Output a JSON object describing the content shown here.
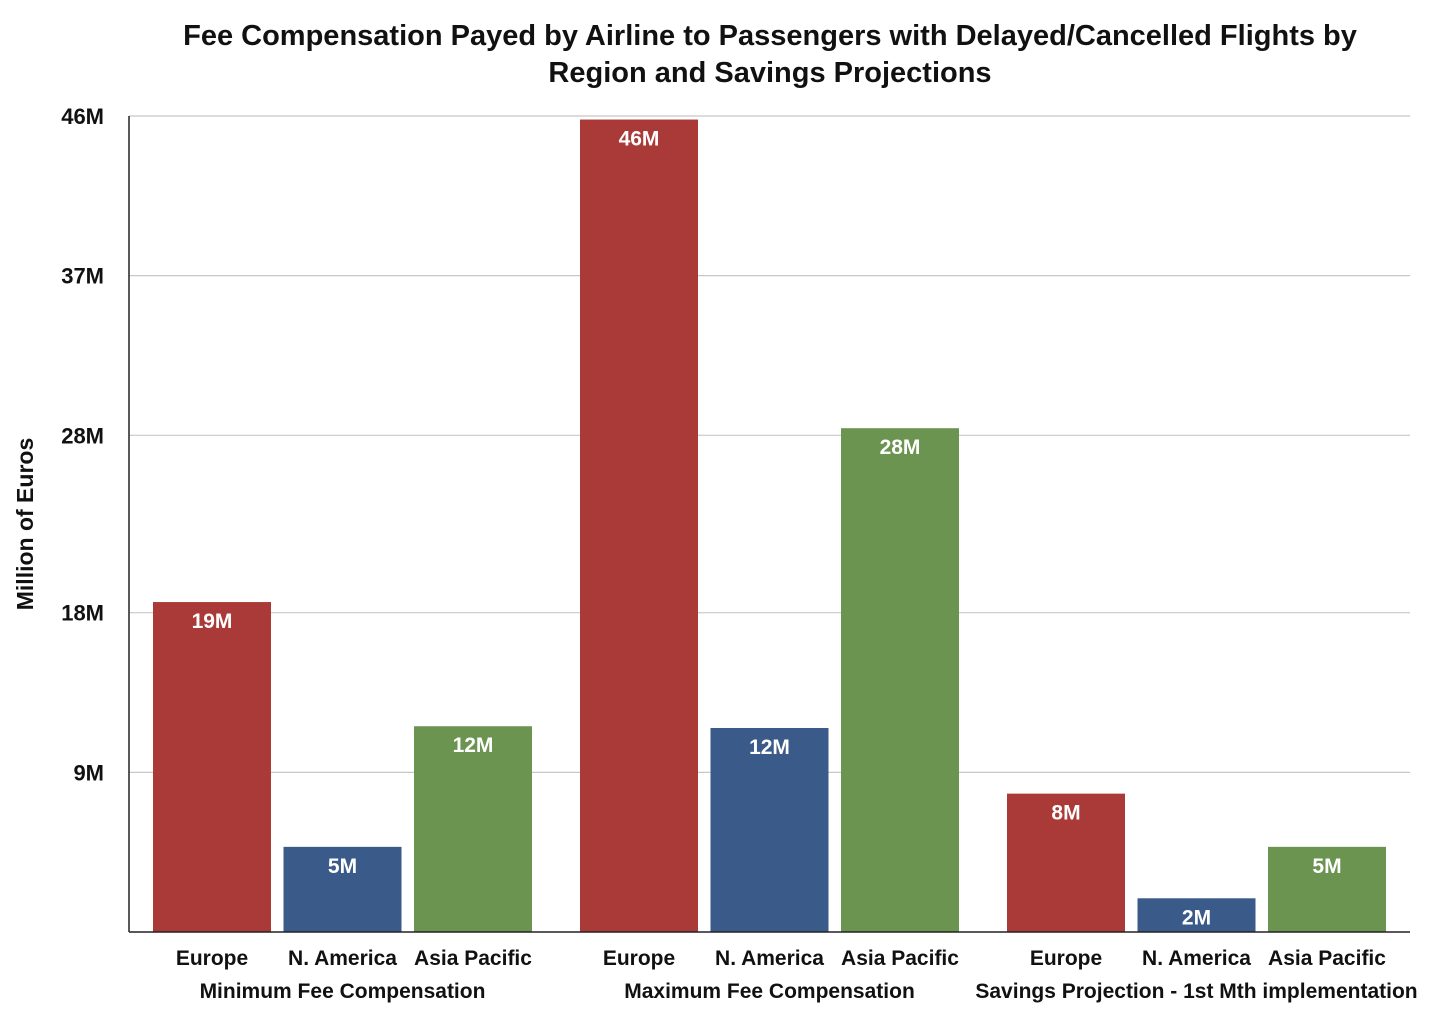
{
  "chart_data": {
    "type": "bar",
    "title_lines": [
      "Fee Compensation Payed by Airline to Passengers with Delayed/Cancelled Flights by",
      "Region and Savings Projections"
    ],
    "ylabel": "Million of Euros",
    "xlabel": "",
    "ylim": [
      0,
      46
    ],
    "y_ticks": [
      {
        "value": 9,
        "label": "9M"
      },
      {
        "value": 18,
        "label": "18M"
      },
      {
        "value": 28,
        "label": "28M"
      },
      {
        "value": 37,
        "label": "37M"
      },
      {
        "value": 46,
        "label": "46M"
      }
    ],
    "grid": true,
    "legend": "none",
    "colors": {
      "Europe": "#a93a38",
      "N. America": "#3a5a8a",
      "Asia Pacific": "#6a9450",
      "gridline": "#c8c8c8",
      "axis": "#222222"
    },
    "groups": [
      {
        "label": "Minimum Fee Compensation",
        "bars": [
          {
            "category": "Europe",
            "value": 18.6,
            "label": "19M"
          },
          {
            "category": "N. America",
            "value": 4.8,
            "label": "5M"
          },
          {
            "category": "Asia Pacific",
            "value": 11.6,
            "label": "12M"
          }
        ]
      },
      {
        "label": "Maximum Fee Compensation",
        "bars": [
          {
            "category": "Europe",
            "value": 45.8,
            "label": "46M"
          },
          {
            "category": "N. America",
            "value": 11.5,
            "label": "12M"
          },
          {
            "category": "Asia Pacific",
            "value": 28.4,
            "label": "28M"
          }
        ]
      },
      {
        "label": "Savings Projection - 1st Mth implementation",
        "bars": [
          {
            "category": "Europe",
            "value": 7.8,
            "label": "8M"
          },
          {
            "category": "N. America",
            "value": 1.9,
            "label": "2M"
          },
          {
            "category": "Asia Pacific",
            "value": 4.8,
            "label": "5M"
          }
        ]
      }
    ]
  }
}
